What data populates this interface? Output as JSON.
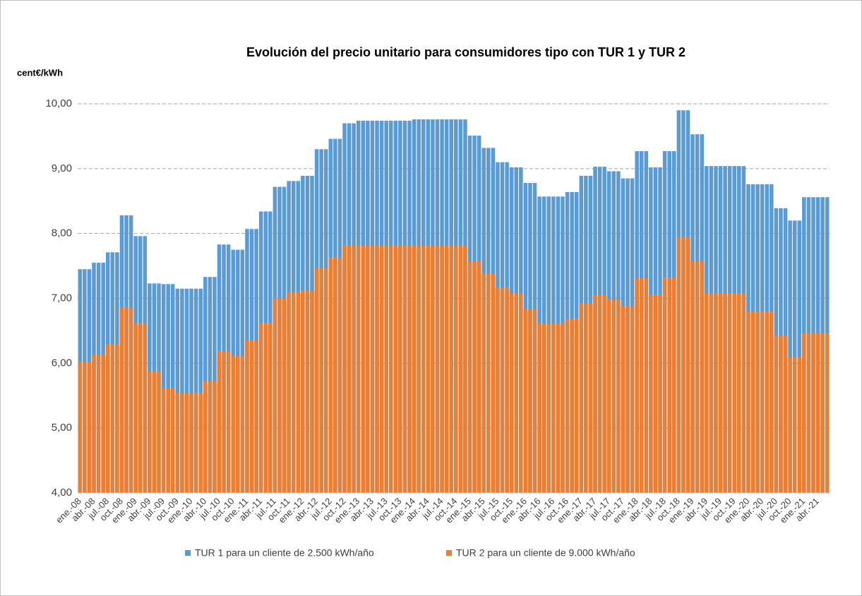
{
  "chart_data": {
    "type": "bar",
    "overlap": true,
    "title": "Evolución del precio unitario para consumidores tipo con TUR 1 y TUR 2",
    "y_label": "cent€/kWh",
    "ylim": [
      4,
      10
    ],
    "yticks": [
      {
        "value": 4,
        "label": "4,00"
      },
      {
        "value": 5,
        "label": "5,00"
      },
      {
        "value": 6,
        "label": "6,00"
      },
      {
        "value": 7,
        "label": "7,00"
      },
      {
        "value": 8,
        "label": "8,00"
      },
      {
        "value": 9,
        "label": "9,00"
      },
      {
        "value": 10,
        "label": "10,00"
      }
    ],
    "grid": true,
    "categories": [
      "ene.-08",
      null,
      null,
      "abr.-08",
      null,
      null,
      "jul.-08",
      null,
      null,
      "oct.-08",
      null,
      null,
      "ene.-09",
      null,
      null,
      "abr.-09",
      null,
      null,
      "jul.-09",
      null,
      null,
      "oct.-09",
      null,
      null,
      "ene.-10",
      null,
      null,
      "abr.-10",
      null,
      null,
      "jul.-10",
      null,
      null,
      "oct.-10",
      null,
      null,
      "ene.-11",
      null,
      null,
      "abr.-11",
      null,
      null,
      "jul.-11",
      null,
      null,
      "oct.-11",
      null,
      null,
      "ene.-12",
      null,
      null,
      "abr.-12",
      null,
      null,
      "jul.-12",
      null,
      null,
      "oct.-12",
      null,
      null,
      "ene.-13",
      null,
      null,
      "abr.-13",
      null,
      null,
      "jul.-13",
      null,
      null,
      "oct.-13",
      null,
      null,
      "ene.-14",
      null,
      null,
      "abr.-14",
      null,
      null,
      "jul.-14",
      null,
      null,
      "oct.-14",
      null,
      null,
      "ene.-15",
      null,
      null,
      "abr.-15",
      null,
      null,
      "jul.-15",
      null,
      null,
      "oct.-15",
      null,
      null,
      "ene.-16",
      null,
      null,
      "abr.-16",
      null,
      null,
      "jul.-16",
      null,
      null,
      "oct.-16",
      null,
      null,
      "ene.-17",
      null,
      null,
      "abr.-17",
      null,
      null,
      "jul.-17",
      null,
      null,
      "oct.-17",
      null,
      null,
      "ene.-18",
      null,
      null,
      "abr.-18",
      null,
      null,
      "jul.-18",
      null,
      null,
      "oct.-18",
      null,
      null,
      "ene.-19",
      null,
      null,
      "abr.-19",
      null,
      null,
      "jul.-19",
      null,
      null,
      "oct.-19",
      null,
      null,
      "ene.-20",
      null,
      null,
      "abr.-20",
      null,
      null,
      "jul.-20",
      null,
      null,
      "oct.-20",
      null,
      null,
      "ene.-21",
      null,
      null,
      "abr.-21",
      null,
      null
    ],
    "series": [
      {
        "name": "TUR 1 para un cliente de 2.500 kWh/año",
        "color": "#5b9bd5",
        "values": [
          7.45,
          7.45,
          7.45,
          7.55,
          7.55,
          7.55,
          7.71,
          7.71,
          7.71,
          8.28,
          8.28,
          8.28,
          7.96,
          7.96,
          7.96,
          7.23,
          7.23,
          7.23,
          7.22,
          7.22,
          7.22,
          7.15,
          7.15,
          7.15,
          7.15,
          7.15,
          7.15,
          7.33,
          7.33,
          7.33,
          7.83,
          7.83,
          7.83,
          7.75,
          7.75,
          7.75,
          8.07,
          8.07,
          8.07,
          8.34,
          8.34,
          8.34,
          8.72,
          8.72,
          8.72,
          8.81,
          8.81,
          8.81,
          8.89,
          8.89,
          8.89,
          9.3,
          9.3,
          9.3,
          9.46,
          9.46,
          9.46,
          9.7,
          9.7,
          9.7,
          9.74,
          9.74,
          9.74,
          9.74,
          9.74,
          9.74,
          9.74,
          9.74,
          9.74,
          9.74,
          9.74,
          9.74,
          9.76,
          9.76,
          9.76,
          9.76,
          9.76,
          9.76,
          9.76,
          9.76,
          9.76,
          9.76,
          9.76,
          9.76,
          9.51,
          9.51,
          9.51,
          9.32,
          9.32,
          9.32,
          9.1,
          9.1,
          9.1,
          9.02,
          9.02,
          9.02,
          8.78,
          8.78,
          8.78,
          8.57,
          8.57,
          8.57,
          8.57,
          8.57,
          8.57,
          8.64,
          8.64,
          8.64,
          8.89,
          8.89,
          8.89,
          9.03,
          9.03,
          9.03,
          8.96,
          8.96,
          8.96,
          8.85,
          8.85,
          8.85,
          9.27,
          9.27,
          9.27,
          9.02,
          9.02,
          9.02,
          9.27,
          9.27,
          9.27,
          9.9,
          9.9,
          9.9,
          9.53,
          9.53,
          9.53,
          9.04,
          9.04,
          9.04,
          9.04,
          9.04,
          9.04,
          9.04,
          9.04,
          9.04,
          8.76,
          8.76,
          8.76,
          8.76,
          8.76,
          8.76,
          8.39,
          8.39,
          8.39,
          8.2,
          8.2,
          8.2,
          8.56,
          8.56,
          8.56,
          8.56,
          8.56,
          8.56
        ]
      },
      {
        "name": "TUR 2 para un cliente de 9.000 kWh/año",
        "color": "#ed7d31",
        "values": [
          6.02,
          6.02,
          6.02,
          6.13,
          6.13,
          6.13,
          6.29,
          6.29,
          6.29,
          6.86,
          6.86,
          6.86,
          6.61,
          6.61,
          6.61,
          5.87,
          5.87,
          5.87,
          5.61,
          5.61,
          5.61,
          5.54,
          5.54,
          5.54,
          5.54,
          5.54,
          5.54,
          5.72,
          5.72,
          5.72,
          6.19,
          6.19,
          6.19,
          6.11,
          6.11,
          6.11,
          6.35,
          6.35,
          6.35,
          6.62,
          6.62,
          6.62,
          7.0,
          7.0,
          7.0,
          7.09,
          7.09,
          7.09,
          7.12,
          7.12,
          7.12,
          7.47,
          7.47,
          7.47,
          7.63,
          7.63,
          7.63,
          7.82,
          7.82,
          7.82,
          7.81,
          7.81,
          7.81,
          7.81,
          7.81,
          7.81,
          7.81,
          7.81,
          7.81,
          7.81,
          7.81,
          7.81,
          7.81,
          7.81,
          7.81,
          7.81,
          7.81,
          7.81,
          7.81,
          7.81,
          7.81,
          7.81,
          7.81,
          7.81,
          7.57,
          7.57,
          7.57,
          7.38,
          7.38,
          7.38,
          7.17,
          7.17,
          7.17,
          7.08,
          7.08,
          7.08,
          6.83,
          6.83,
          6.83,
          6.61,
          6.61,
          6.61,
          6.61,
          6.61,
          6.61,
          6.69,
          6.69,
          6.69,
          6.92,
          6.92,
          6.92,
          7.06,
          7.06,
          7.06,
          6.98,
          6.98,
          6.98,
          6.88,
          6.88,
          6.88,
          7.31,
          7.31,
          7.31,
          7.06,
          7.06,
          7.06,
          7.32,
          7.32,
          7.32,
          7.94,
          7.94,
          7.94,
          7.57,
          7.57,
          7.57,
          7.08,
          7.08,
          7.08,
          7.08,
          7.08,
          7.08,
          7.08,
          7.08,
          7.08,
          6.8,
          6.8,
          6.8,
          6.8,
          6.8,
          6.8,
          6.43,
          6.43,
          6.43,
          6.09,
          6.09,
          6.09,
          6.46,
          6.46,
          6.46,
          6.46,
          6.46,
          6.46
        ]
      }
    ]
  }
}
